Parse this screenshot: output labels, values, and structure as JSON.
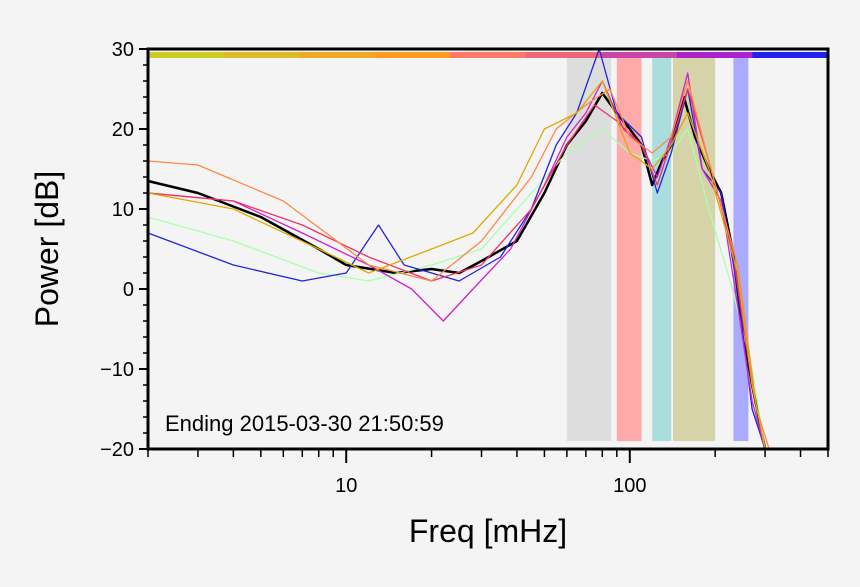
{
  "chart_data": {
    "type": "line",
    "title": "",
    "xlabel": "Freq [mHz]",
    "ylabel": "Power [dB]",
    "annotation": "Ending 2015-03-30 21:50:59",
    "x_scale": "log",
    "xlim": [
      2,
      500
    ],
    "ylim": [
      -20,
      30
    ],
    "x_ticks": [
      10,
      100
    ],
    "y_ticks": [
      30,
      20,
      10,
      0,
      -10,
      -20
    ],
    "grid": false,
    "legend": "none",
    "top_color_bar": [
      "#cccc22",
      "#ddbb22",
      "#eeaa22",
      "#ff9922",
      "#ff7766",
      "#ee6677",
      "#cc44aa",
      "#aa22cc",
      "#2222ee"
    ],
    "shaded_bands": [
      {
        "from": 60,
        "to": 86,
        "color": "#dddddd"
      },
      {
        "from": 90,
        "to": 110,
        "color": "#ffaaaa"
      },
      {
        "from": 120,
        "to": 140,
        "color": "#aadddd"
      },
      {
        "from": 142,
        "to": 200,
        "color": "#d6d3a8"
      },
      {
        "from": 232,
        "to": 262,
        "color": "#aaaaff"
      }
    ],
    "series": [
      {
        "color": "#000000",
        "points": [
          [
            2,
            13.5
          ],
          [
            3,
            12
          ],
          [
            5,
            9
          ],
          [
            8,
            5
          ],
          [
            10,
            3
          ],
          [
            15,
            2
          ],
          [
            20,
            2.5
          ],
          [
            25,
            2
          ],
          [
            30,
            3.5
          ],
          [
            40,
            6
          ],
          [
            50,
            12
          ],
          [
            60,
            18
          ],
          [
            70,
            21
          ],
          [
            80,
            24.5
          ],
          [
            90,
            22
          ],
          [
            100,
            20
          ],
          [
            110,
            18
          ],
          [
            120,
            13
          ],
          [
            130,
            16
          ],
          [
            140,
            18
          ],
          [
            155,
            24
          ],
          [
            170,
            19
          ],
          [
            190,
            15
          ],
          [
            210,
            12
          ],
          [
            230,
            5
          ],
          [
            250,
            -5
          ],
          [
            270,
            -12
          ],
          [
            300,
            -20
          ],
          [
            500,
            -20
          ]
        ]
      },
      {
        "color": "#aaffaa",
        "points": [
          [
            2,
            9
          ],
          [
            4,
            6
          ],
          [
            8,
            2
          ],
          [
            12,
            1
          ],
          [
            20,
            3
          ],
          [
            30,
            5
          ],
          [
            45,
            12
          ],
          [
            60,
            17
          ],
          [
            80,
            20
          ],
          [
            100,
            17
          ],
          [
            120,
            16
          ],
          [
            140,
            17
          ],
          [
            160,
            20
          ],
          [
            190,
            10
          ],
          [
            230,
            0
          ],
          [
            270,
            -10
          ],
          [
            300,
            -20
          ],
          [
            500,
            -20
          ]
        ]
      },
      {
        "color": "#2222dd",
        "points": [
          [
            2,
            7
          ],
          [
            4,
            3
          ],
          [
            7,
            1
          ],
          [
            10,
            2
          ],
          [
            13,
            8
          ],
          [
            16,
            3
          ],
          [
            25,
            1
          ],
          [
            35,
            4
          ],
          [
            45,
            10
          ],
          [
            55,
            18
          ],
          [
            65,
            22
          ],
          [
            78,
            30
          ],
          [
            90,
            22
          ],
          [
            110,
            19
          ],
          [
            125,
            12
          ],
          [
            140,
            17
          ],
          [
            160,
            25
          ],
          [
            180,
            15
          ],
          [
            210,
            12
          ],
          [
            240,
            0
          ],
          [
            270,
            -15
          ],
          [
            300,
            -20
          ],
          [
            500,
            -20
          ]
        ]
      },
      {
        "color": "#cc22cc",
        "points": [
          [
            2,
            12
          ],
          [
            4,
            11
          ],
          [
            7,
            7
          ],
          [
            12,
            3
          ],
          [
            17,
            0
          ],
          [
            22,
            -4
          ],
          [
            28,
            0
          ],
          [
            38,
            5
          ],
          [
            50,
            13
          ],
          [
            60,
            19
          ],
          [
            70,
            22
          ],
          [
            80,
            26
          ],
          [
            95,
            20
          ],
          [
            110,
            18
          ],
          [
            125,
            14
          ],
          [
            140,
            19
          ],
          [
            160,
            27
          ],
          [
            180,
            15
          ],
          [
            210,
            11
          ],
          [
            240,
            -2
          ],
          [
            270,
            -14
          ],
          [
            300,
            -20
          ],
          [
            500,
            -20
          ]
        ]
      },
      {
        "color": "#ee3366",
        "points": [
          [
            2,
            12
          ],
          [
            4,
            11
          ],
          [
            7,
            8
          ],
          [
            12,
            4
          ],
          [
            20,
            1
          ],
          [
            30,
            3
          ],
          [
            45,
            10
          ],
          [
            60,
            18
          ],
          [
            75,
            23
          ],
          [
            90,
            21
          ],
          [
            110,
            18
          ],
          [
            125,
            13
          ],
          [
            145,
            20
          ],
          [
            160,
            25
          ],
          [
            190,
            16
          ],
          [
            230,
            5
          ],
          [
            270,
            -12
          ],
          [
            300,
            -20
          ],
          [
            500,
            -20
          ]
        ]
      },
      {
        "color": "#ff8844",
        "points": [
          [
            2,
            16
          ],
          [
            3,
            15.5
          ],
          [
            6,
            11
          ],
          [
            12,
            3
          ],
          [
            20,
            1
          ],
          [
            30,
            6
          ],
          [
            45,
            14
          ],
          [
            55,
            20
          ],
          [
            70,
            23
          ],
          [
            85,
            25
          ],
          [
            100,
            19
          ],
          [
            120,
            17
          ],
          [
            140,
            19
          ],
          [
            160,
            26
          ],
          [
            190,
            16
          ],
          [
            240,
            3
          ],
          [
            280,
            -15
          ],
          [
            310,
            -20
          ],
          [
            500,
            -20
          ]
        ]
      },
      {
        "color": "#ddaa00",
        "points": [
          [
            2,
            12
          ],
          [
            4,
            10
          ],
          [
            8,
            5
          ],
          [
            12,
            2
          ],
          [
            20,
            5
          ],
          [
            28,
            7
          ],
          [
            40,
            13
          ],
          [
            50,
            20
          ],
          [
            65,
            22
          ],
          [
            80,
            26
          ],
          [
            100,
            17
          ],
          [
            120,
            15
          ],
          [
            140,
            18
          ],
          [
            160,
            22
          ],
          [
            190,
            15
          ],
          [
            240,
            2
          ],
          [
            270,
            -12
          ],
          [
            300,
            -20
          ],
          [
            500,
            -20
          ]
        ]
      }
    ]
  }
}
